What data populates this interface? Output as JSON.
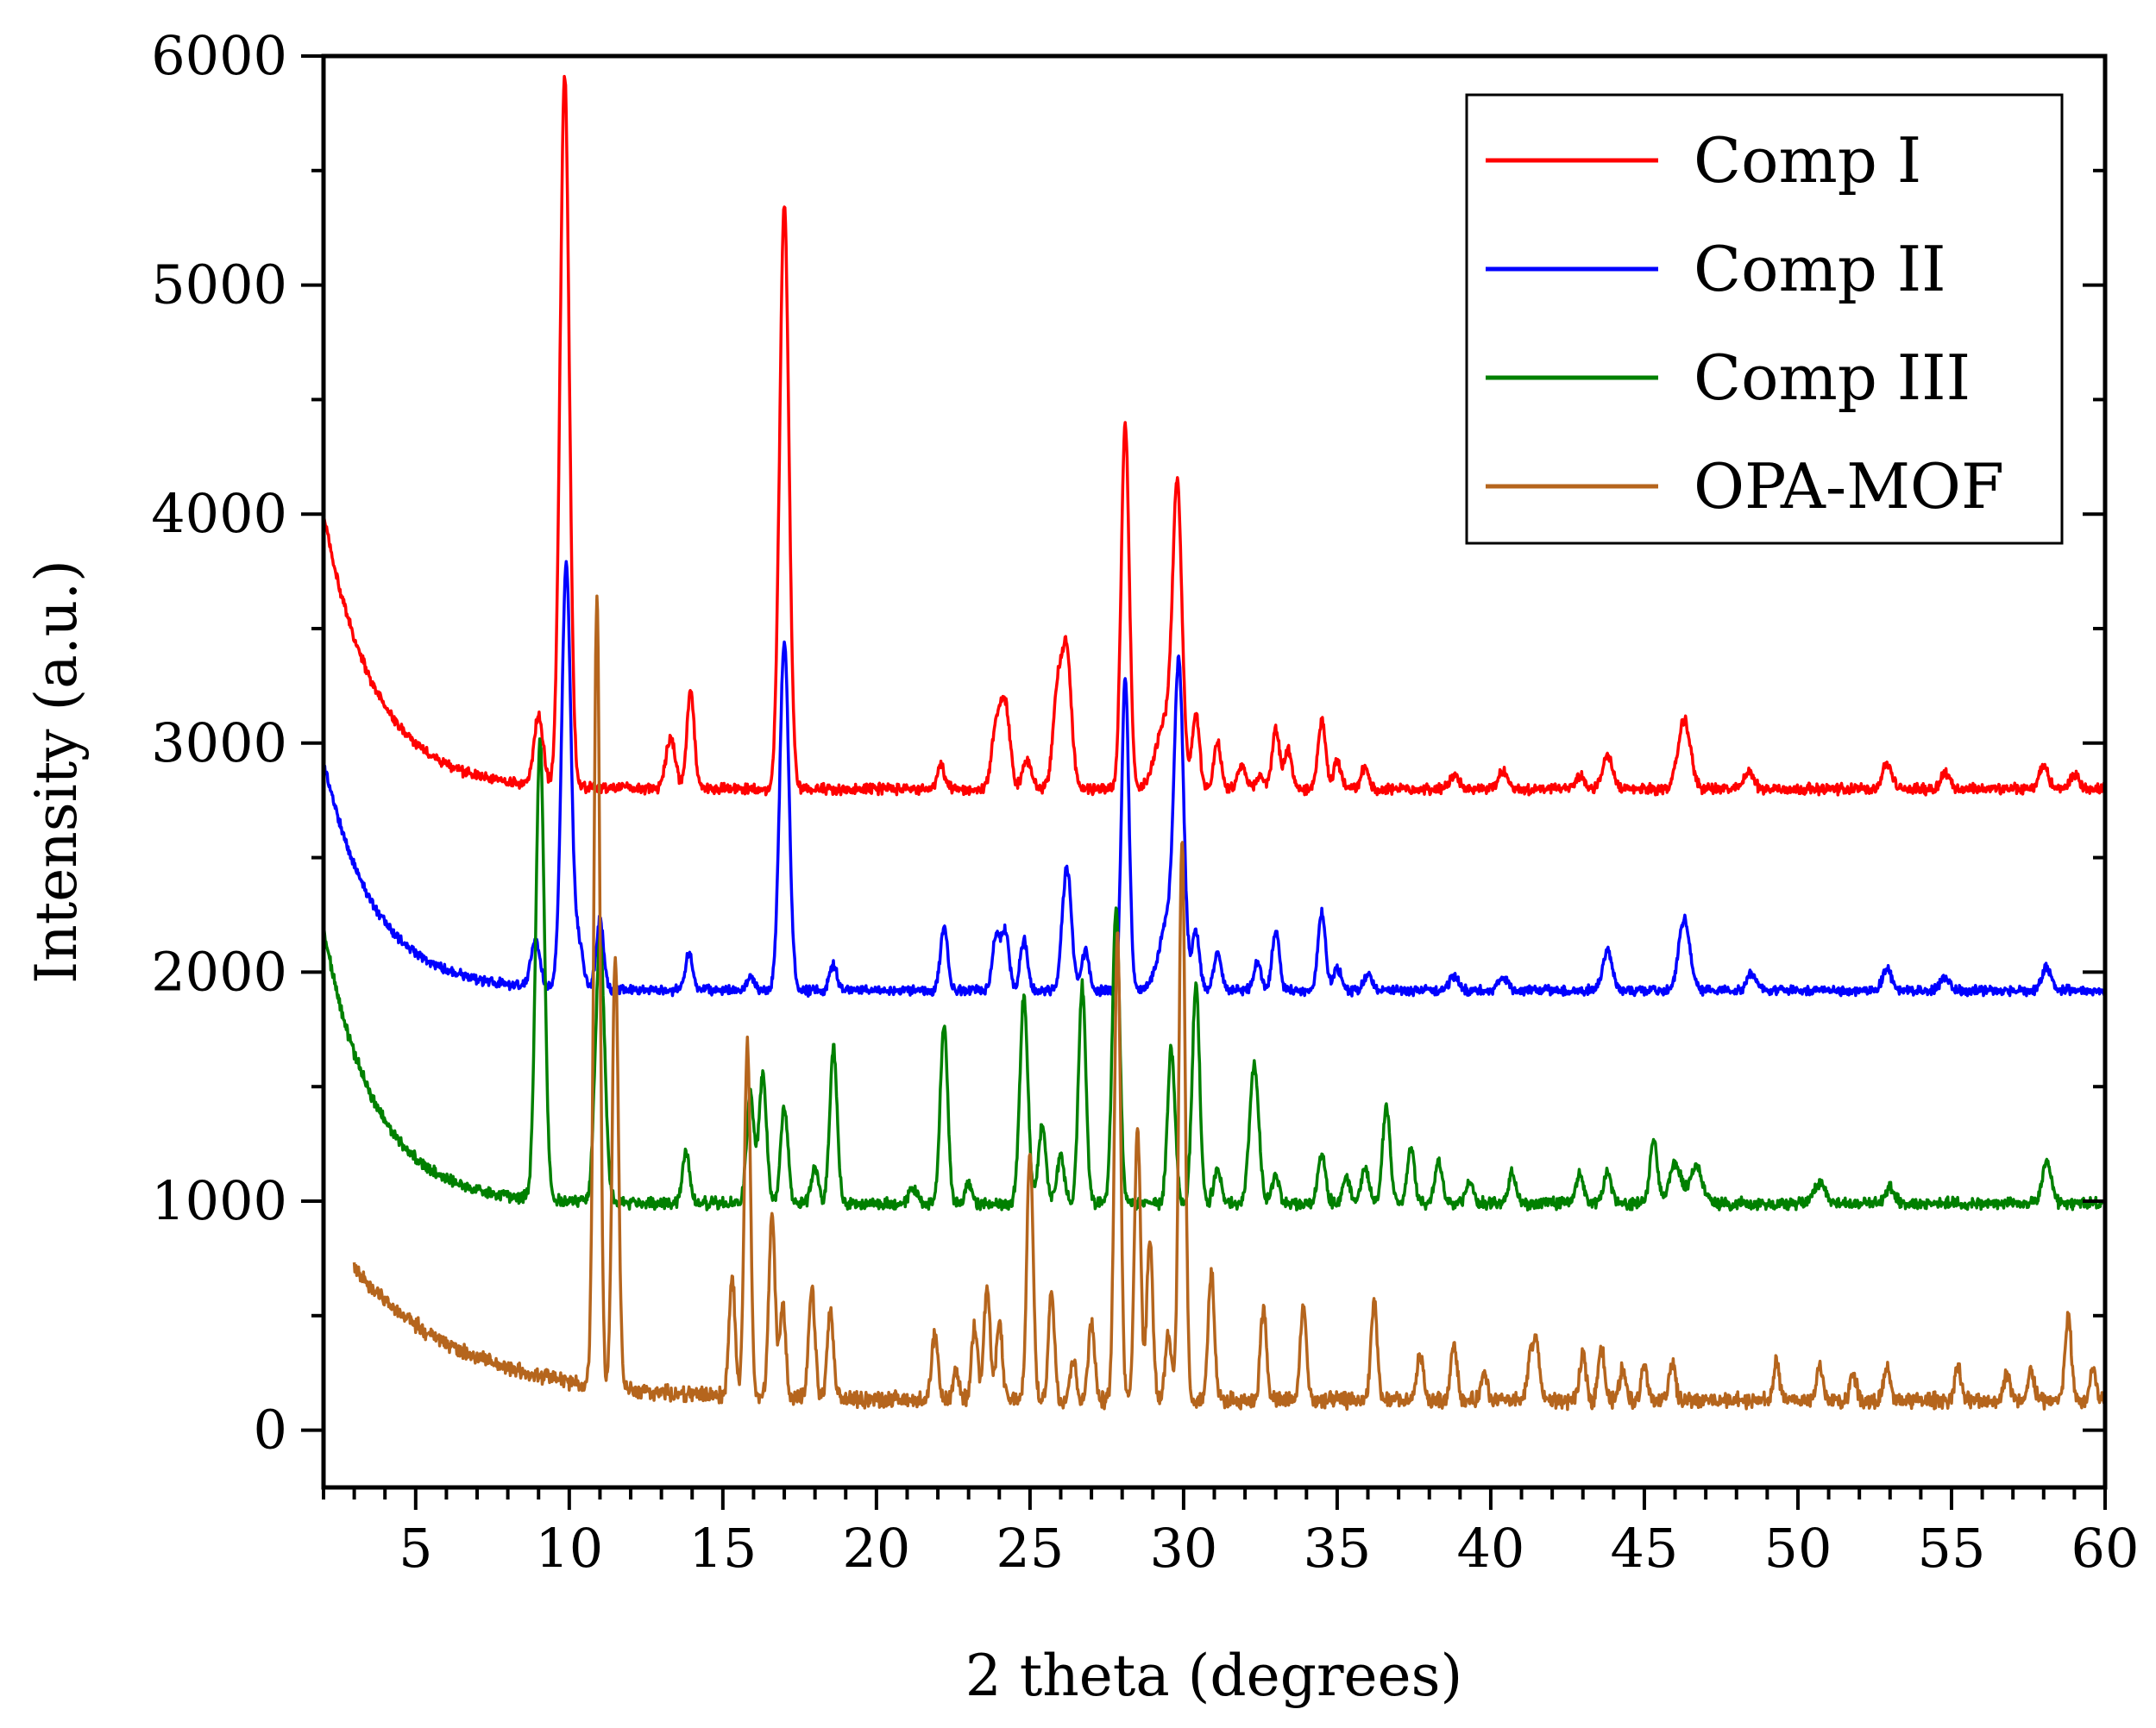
{
  "chart_data": {
    "type": "line",
    "title": "",
    "xlabel": "2 theta (degrees)",
    "ylabel": "Intensity (a.u.)",
    "xlim": [
      2,
      60
    ],
    "ylim": [
      -250,
      6000
    ],
    "x_ticks": [
      5,
      10,
      15,
      20,
      25,
      30,
      35,
      40,
      45,
      50,
      55,
      60
    ],
    "y_ticks": [
      0,
      1000,
      2000,
      3000,
      4000,
      5000,
      6000
    ],
    "legend_position": "top-right",
    "series": [
      {
        "name": "Comp I",
        "color": "#ff0000",
        "x_start": 2,
        "baseline": 2800,
        "decay": {
          "amplitude": 1200,
          "rate": 0.6
        },
        "noise": 20,
        "peaks": [
          [
            9.0,
            300,
            0.15
          ],
          [
            9.85,
            3100,
            0.15
          ],
          [
            13.3,
            220,
            0.15
          ],
          [
            13.95,
            430,
            0.12
          ],
          [
            17.0,
            2550,
            0.15
          ],
          [
            22.1,
            100,
            0.12
          ],
          [
            23.9,
            270,
            0.15
          ],
          [
            24.2,
            350,
            0.15
          ],
          [
            24.9,
            120,
            0.15
          ],
          [
            25.9,
            420,
            0.15
          ],
          [
            26.2,
            580,
            0.15
          ],
          [
            28.1,
            1600,
            0.13
          ],
          [
            29.4,
            300,
            0.3
          ],
          [
            29.8,
            1230,
            0.15
          ],
          [
            30.4,
            330,
            0.12
          ],
          [
            31.1,
            200,
            0.12
          ],
          [
            31.9,
            100,
            0.12
          ],
          [
            32.5,
            60,
            0.12
          ],
          [
            33.0,
            260,
            0.12
          ],
          [
            33.4,
            170,
            0.12
          ],
          [
            34.5,
            300,
            0.12
          ],
          [
            35.0,
            120,
            0.12
          ],
          [
            35.9,
            90,
            0.12
          ],
          [
            38.8,
            60,
            0.15
          ],
          [
            40.4,
            80,
            0.15
          ],
          [
            42.9,
            60,
            0.15
          ],
          [
            43.8,
            150,
            0.15
          ],
          [
            46.3,
            300,
            0.2
          ],
          [
            48.4,
            80,
            0.15
          ],
          [
            52.9,
            110,
            0.15
          ],
          [
            54.8,
            70,
            0.15
          ],
          [
            58.0,
            100,
            0.15
          ],
          [
            59.0,
            60,
            0.15
          ]
        ]
      },
      {
        "name": "Comp II",
        "color": "#0000ff",
        "x_start": 2,
        "baseline": 1920,
        "decay": {
          "amplitude": 1000,
          "rate": 0.6
        },
        "noise": 18,
        "peaks": [
          [
            8.9,
            200,
            0.15
          ],
          [
            9.9,
            1850,
            0.15
          ],
          [
            10.3,
            200,
            0.15
          ],
          [
            11.0,
            300,
            0.12
          ],
          [
            13.9,
            160,
            0.12
          ],
          [
            15.9,
            60,
            0.12
          ],
          [
            17.0,
            1520,
            0.15
          ],
          [
            18.6,
            110,
            0.12
          ],
          [
            22.2,
            270,
            0.12
          ],
          [
            23.9,
            250,
            0.12
          ],
          [
            24.2,
            250,
            0.12
          ],
          [
            24.8,
            220,
            0.12
          ],
          [
            26.2,
            540,
            0.15
          ],
          [
            26.8,
            170,
            0.12
          ],
          [
            28.1,
            1360,
            0.12
          ],
          [
            29.5,
            300,
            0.3
          ],
          [
            29.85,
            1300,
            0.15
          ],
          [
            30.4,
            260,
            0.12
          ],
          [
            31.1,
            170,
            0.12
          ],
          [
            32.4,
            120,
            0.12
          ],
          [
            33.0,
            250,
            0.12
          ],
          [
            34.5,
            340,
            0.12
          ],
          [
            35.0,
            100,
            0.12
          ],
          [
            36.0,
            80,
            0.12
          ],
          [
            38.8,
            60,
            0.15
          ],
          [
            40.4,
            60,
            0.15
          ],
          [
            43.8,
            180,
            0.15
          ],
          [
            46.3,
            310,
            0.18
          ],
          [
            48.5,
            80,
            0.15
          ],
          [
            52.9,
            90,
            0.15
          ],
          [
            54.8,
            60,
            0.15
          ],
          [
            58.1,
            100,
            0.15
          ]
        ]
      },
      {
        "name": "Comp III",
        "color": "#008000",
        "x_start": 2,
        "baseline": 990,
        "decay": {
          "amplitude": 1200,
          "rate": 0.6
        },
        "noise": 22,
        "peaks": [
          [
            9.05,
            2000,
            0.14
          ],
          [
            11.0,
            1150,
            0.15
          ],
          [
            13.8,
            220,
            0.12
          ],
          [
            15.9,
            480,
            0.12
          ],
          [
            16.3,
            560,
            0.12
          ],
          [
            17.0,
            420,
            0.12
          ],
          [
            18.0,
            160,
            0.12
          ],
          [
            18.6,
            680,
            0.12
          ],
          [
            21.2,
            60,
            0.15
          ],
          [
            22.2,
            780,
            0.12
          ],
          [
            23.0,
            80,
            0.12
          ],
          [
            24.8,
            900,
            0.13
          ],
          [
            25.4,
            340,
            0.12
          ],
          [
            26.0,
            200,
            0.12
          ],
          [
            26.7,
            950,
            0.12
          ],
          [
            27.8,
            1300,
            0.12
          ],
          [
            29.6,
            670,
            0.12
          ],
          [
            30.4,
            960,
            0.12
          ],
          [
            31.1,
            140,
            0.12
          ],
          [
            32.3,
            600,
            0.15
          ],
          [
            33.0,
            120,
            0.12
          ],
          [
            34.5,
            220,
            0.12
          ],
          [
            35.3,
            120,
            0.12
          ],
          [
            35.9,
            160,
            0.12
          ],
          [
            36.6,
            430,
            0.12
          ],
          [
            37.4,
            240,
            0.12
          ],
          [
            38.3,
            180,
            0.12
          ],
          [
            39.3,
            90,
            0.12
          ],
          [
            40.7,
            130,
            0.12
          ],
          [
            42.9,
            130,
            0.12
          ],
          [
            43.8,
            140,
            0.12
          ],
          [
            45.3,
            280,
            0.12
          ],
          [
            46.0,
            170,
            0.2
          ],
          [
            46.7,
            160,
            0.2
          ],
          [
            50.7,
            90,
            0.2
          ],
          [
            53.0,
            70,
            0.15
          ],
          [
            58.1,
            170,
            0.15
          ]
        ]
      },
      {
        "name": "OPA-MOF",
        "color": "#b5651d",
        "x_start": 3,
        "baseline": 130,
        "decay": {
          "amplitude": 580,
          "rate": 0.28
        },
        "noise": 30,
        "peaks": [
          [
            10.9,
            3450,
            0.1
          ],
          [
            11.5,
            1900,
            0.1
          ],
          [
            15.3,
            520,
            0.1
          ],
          [
            15.8,
            1550,
            0.1
          ],
          [
            16.6,
            800,
            0.1
          ],
          [
            16.95,
            400,
            0.1
          ],
          [
            17.9,
            480,
            0.1
          ],
          [
            18.5,
            380,
            0.1
          ],
          [
            21.9,
            280,
            0.1
          ],
          [
            22.6,
            120,
            0.1
          ],
          [
            23.2,
            330,
            0.1
          ],
          [
            23.6,
            490,
            0.1
          ],
          [
            24.0,
            340,
            0.1
          ],
          [
            25.0,
            1100,
            0.1
          ],
          [
            25.7,
            470,
            0.1
          ],
          [
            26.4,
            180,
            0.1
          ],
          [
            27.0,
            350,
            0.1
          ],
          [
            27.85,
            2050,
            0.1
          ],
          [
            28.5,
            1200,
            0.1
          ],
          [
            28.9,
            700,
            0.1
          ],
          [
            29.5,
            300,
            0.1
          ],
          [
            29.95,
            2450,
            0.1
          ],
          [
            30.9,
            560,
            0.1
          ],
          [
            32.6,
            400,
            0.1
          ],
          [
            33.9,
            410,
            0.1
          ],
          [
            36.2,
            430,
            0.1
          ],
          [
            37.7,
            200,
            0.1
          ],
          [
            38.8,
            260,
            0.1
          ],
          [
            39.8,
            120,
            0.1
          ],
          [
            41.3,
            200,
            0.1
          ],
          [
            41.5,
            230,
            0.1
          ],
          [
            43.0,
            200,
            0.1
          ],
          [
            43.6,
            240,
            0.1
          ],
          [
            44.3,
            140,
            0.1
          ],
          [
            45.0,
            160,
            0.1
          ],
          [
            45.9,
            170,
            0.1
          ],
          [
            49.3,
            160,
            0.1
          ],
          [
            50.7,
            150,
            0.1
          ],
          [
            51.8,
            120,
            0.1
          ],
          [
            52.9,
            140,
            0.1
          ],
          [
            55.2,
            150,
            0.1
          ],
          [
            56.8,
            120,
            0.1
          ],
          [
            57.6,
            130,
            0.1
          ],
          [
            58.8,
            370,
            0.1
          ],
          [
            59.6,
            140,
            0.1
          ]
        ]
      }
    ]
  }
}
